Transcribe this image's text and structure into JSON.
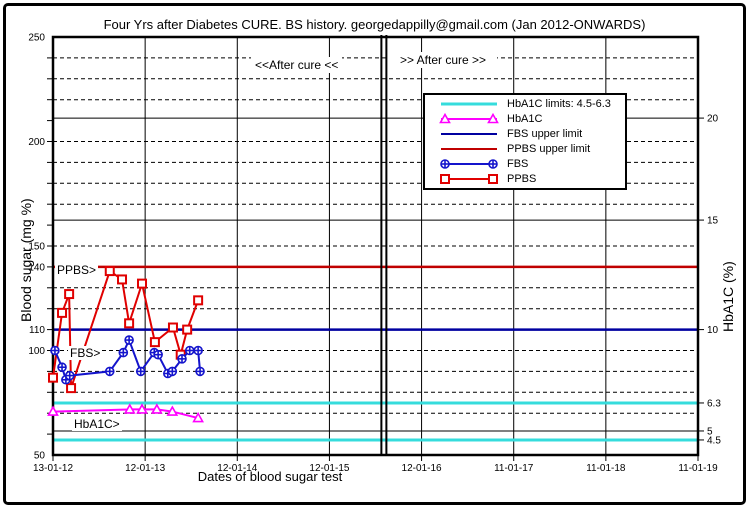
{
  "window": {
    "background": "#ffffff",
    "border_color": "#000000"
  },
  "title": "Four Yrs after Diabetes CURE. BS history. georgedappilly@gmail.com (Jan 2012-ONWARDS)",
  "annotations": {
    "before_sep": "<<After cure <<",
    "after_sep": ">> After cure >>"
  },
  "series_labels": {
    "ppbs": "PPBS>",
    "fbs": "FBS>",
    "hba1c": "HbA1C>"
  },
  "legend": {
    "items": [
      {
        "label": "HbA1C limits: 4.5-6.3",
        "color": "#35dcdc",
        "line_width": 3,
        "marker": "none"
      },
      {
        "label": "HbA1C",
        "color": "#ff00ff",
        "line_width": 2,
        "marker": "triangle"
      },
      {
        "label": "FBS upper limit",
        "color": "#0000a0",
        "line_width": 2,
        "marker": "none"
      },
      {
        "label": "PPBS upper limit",
        "color": "#c00000",
        "line_width": 2,
        "marker": "none"
      },
      {
        "label": "FBS",
        "color": "#1414cc",
        "line_width": 2,
        "marker": "circle-cross"
      },
      {
        "label": "PPBS",
        "color": "#e00000",
        "line_width": 2,
        "marker": "square"
      }
    ]
  },
  "chart_data": {
    "type": "line",
    "title": "Four Yrs after Diabetes CURE. BS history. georgedappilly@gmail.com (Jan 2012-ONWARDS)",
    "x_axis": {
      "label": "Dates of blood sugar test",
      "tick_labels": [
        "13-01-12",
        "12-01-13",
        "12-01-14",
        "12-01-15",
        "12-01-16",
        "11-01-17",
        "11-01-18",
        "11-01-19"
      ]
    },
    "y_left": {
      "label": "Blood sugar (mg %)",
      "range": [
        50,
        250
      ],
      "tick_values": [
        250,
        200,
        150,
        140,
        110,
        100,
        50
      ],
      "minor_tick_step": 10
    },
    "y_right": {
      "label": "HbA1C (%)",
      "ticks": [
        {
          "label": "20",
          "value": 20,
          "left_equiv": 211.2
        },
        {
          "label": "15",
          "value": 15,
          "left_equiv": 162.4
        },
        {
          "label": "10",
          "value": 10,
          "left_equiv": 110
        },
        {
          "label": "6.3",
          "value": 6.3,
          "left_equiv": 74.9
        },
        {
          "label": "5",
          "value": 5,
          "left_equiv": 61.5
        },
        {
          "label": "4.5",
          "value": 4.5,
          "left_equiv": 57.2
        }
      ]
    },
    "grid": {
      "dashed_at": [
        240,
        230,
        220,
        200,
        190,
        180,
        170,
        150,
        130,
        120,
        100,
        90,
        80,
        70
      ],
      "solid_at": [
        211.2,
        162.4,
        61.5
      ],
      "vertical_at_every_x_tick": true
    },
    "separator": {
      "x_frac": 0.513,
      "style": "double-vertical-line"
    },
    "reference_lines": [
      {
        "name": "PPBS upper limit",
        "left_equiv": 140,
        "color": "#c00000",
        "width": 2.5
      },
      {
        "name": "FBS upper limit",
        "left_equiv": 110,
        "color": "#0000a0",
        "width": 2.5
      },
      {
        "name": "HbA1C upper limit 6.3",
        "left_equiv": 74.9,
        "color": "#35dcdc",
        "width": 3
      },
      {
        "name": "HbA1C lower limit 4.5",
        "left_equiv": 57.2,
        "color": "#35dcdc",
        "width": 3
      }
    ],
    "series": [
      {
        "name": "PPBS",
        "axis": "left",
        "color": "#e00000",
        "marker": "square",
        "points": [
          {
            "x_frac": 0.0,
            "value": 87
          },
          {
            "x_frac": 0.014,
            "value": 118
          },
          {
            "x_frac": 0.025,
            "value": 127
          },
          {
            "x_frac": 0.028,
            "value": 82
          },
          {
            "x_frac": 0.088,
            "value": 138
          },
          {
            "x_frac": 0.107,
            "value": 134
          },
          {
            "x_frac": 0.118,
            "value": 113
          },
          {
            "x_frac": 0.138,
            "value": 132
          },
          {
            "x_frac": 0.158,
            "value": 104
          },
          {
            "x_frac": 0.186,
            "value": 111
          },
          {
            "x_frac": 0.198,
            "value": 98
          },
          {
            "x_frac": 0.208,
            "value": 110
          },
          {
            "x_frac": 0.225,
            "value": 124
          }
        ]
      },
      {
        "name": "FBS",
        "axis": "left",
        "color": "#1414cc",
        "marker": "circle-cross",
        "points": [
          {
            "x_frac": 0.003,
            "value": 100
          },
          {
            "x_frac": 0.014,
            "value": 92
          },
          {
            "x_frac": 0.02,
            "value": 86
          },
          {
            "x_frac": 0.026,
            "value": 88
          },
          {
            "x_frac": 0.088,
            "value": 90
          },
          {
            "x_frac": 0.109,
            "value": 99
          },
          {
            "x_frac": 0.118,
            "value": 105
          },
          {
            "x_frac": 0.136,
            "value": 90
          },
          {
            "x_frac": 0.157,
            "value": 99
          },
          {
            "x_frac": 0.163,
            "value": 98
          },
          {
            "x_frac": 0.178,
            "value": 89
          },
          {
            "x_frac": 0.185,
            "value": 90
          },
          {
            "x_frac": 0.2,
            "value": 96
          },
          {
            "x_frac": 0.212,
            "value": 100
          },
          {
            "x_frac": 0.225,
            "value": 100
          },
          {
            "x_frac": 0.228,
            "value": 90
          }
        ]
      },
      {
        "name": "HbA1C",
        "axis": "right",
        "color": "#ff00ff",
        "marker": "triangle",
        "points": [
          {
            "x_frac": 0.0,
            "value": 5.9
          },
          {
            "x_frac": 0.119,
            "value": 6.0
          },
          {
            "x_frac": 0.138,
            "value": 6.0
          },
          {
            "x_frac": 0.161,
            "value": 6.0
          },
          {
            "x_frac": 0.185,
            "value": 5.9
          },
          {
            "x_frac": 0.225,
            "value": 5.6
          }
        ]
      }
    ]
  }
}
